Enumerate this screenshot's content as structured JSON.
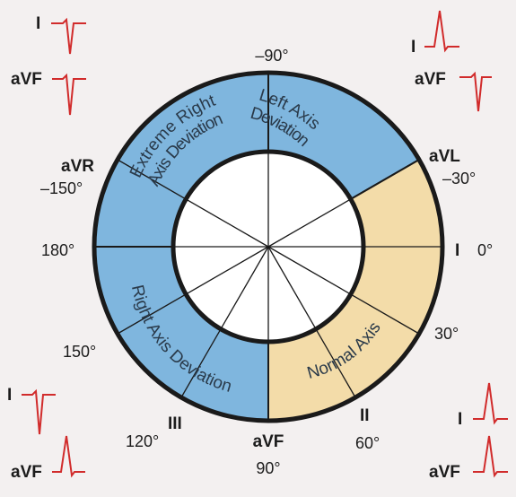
{
  "colors": {
    "background": "#f3f0f0",
    "deviation_fill": "#7fb6de",
    "normal_fill": "#f3dca9",
    "ring_stroke": "#1a1a1a",
    "ecg_trace": "#d12b2b"
  },
  "segments": {
    "left_axis": [
      "Left Axis",
      "Deviation"
    ],
    "extreme_right": [
      "Extreme Right",
      "Axis Deviation"
    ],
    "right_axis": "Right Axis Deviation",
    "normal_axis": "Normal Axis"
  },
  "degrees": {
    "neg90": "–90°",
    "neg30": "–30°",
    "zero": "0°",
    "d30": "30°",
    "d60": "60°",
    "d90": "90°",
    "d120": "120°",
    "d150": "150°",
    "d180": "180°",
    "neg150": "–150°"
  },
  "leads": {
    "avl": "aVL",
    "i": "I",
    "ii": "II",
    "avf": "aVF",
    "iii": "III",
    "avr": "aVR"
  },
  "ecg_examples": {
    "top_left": {
      "lead1": "I",
      "lead2": "aVF",
      "lead1_deflection": "negative",
      "lead2_deflection": "negative"
    },
    "top_right": {
      "lead1": "I",
      "lead2": "aVF",
      "lead1_deflection": "positive",
      "lead2_deflection": "negative"
    },
    "bottom_left": {
      "lead1": "I",
      "lead2": "aVF",
      "lead1_deflection": "negative",
      "lead2_deflection": "positive"
    },
    "bottom_right": {
      "lead1": "I",
      "lead2": "aVF",
      "lead1_deflection": "positive",
      "lead2_deflection": "positive"
    }
  }
}
